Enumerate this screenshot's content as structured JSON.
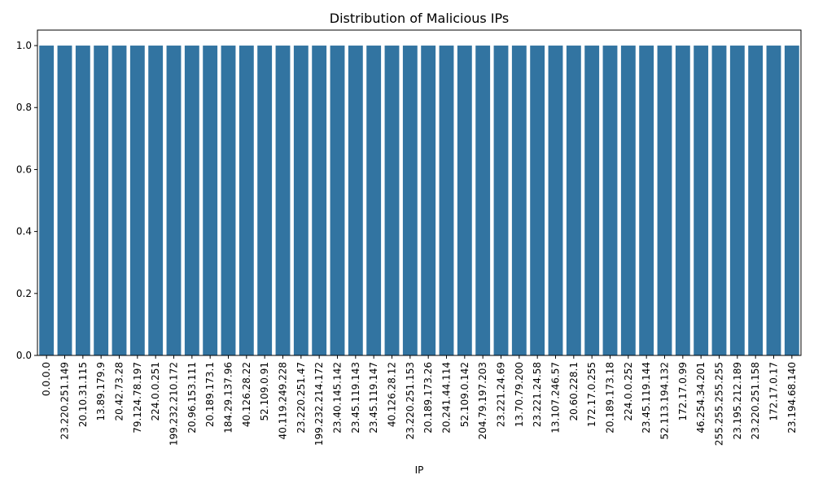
{
  "chart_data": {
    "type": "bar",
    "title": "Distribution of Malicious IPs",
    "xlabel": "IP",
    "ylabel": "",
    "ylim": [
      0,
      1.05
    ],
    "yticks": [
      0.0,
      0.2,
      0.4,
      0.6,
      0.8,
      1.0
    ],
    "ytick_labels": [
      "0.0",
      "0.2",
      "0.4",
      "0.6",
      "0.8",
      "1.0"
    ],
    "grid": false,
    "bar_color": "#3274a1",
    "categories": [
      "0.0.0.0",
      "23.220.251.149",
      "20.10.31.115",
      "13.89.179.9",
      "20.42.73.28",
      "79.124.78.197",
      "224.0.0.251",
      "199.232.210.172",
      "20.96.153.111",
      "20.189.173.1",
      "184.29.137.96",
      "40.126.28.22",
      "52.109.0.91",
      "40.119.249.228",
      "23.220.251.47",
      "199.232.214.172",
      "23.40.145.142",
      "23.45.119.143",
      "23.45.119.147",
      "40.126.28.12",
      "23.220.251.153",
      "20.189.173.26",
      "20.241.44.114",
      "52.109.0.142",
      "204.79.197.203",
      "23.221.24.69",
      "13.70.79.200",
      "23.221.24.58",
      "13.107.246.57",
      "20.60.228.1",
      "172.17.0.255",
      "20.189.173.18",
      "224.0.0.252",
      "23.45.119.144",
      "52.113.194.132",
      "172.17.0.99",
      "46.254.34.201",
      "255.255.255.255",
      "23.195.212.189",
      "23.220.251.158",
      "172.17.0.17",
      "23.194.68.140"
    ],
    "values": [
      1,
      1,
      1,
      1,
      1,
      1,
      1,
      1,
      1,
      1,
      1,
      1,
      1,
      1,
      1,
      1,
      1,
      1,
      1,
      1,
      1,
      1,
      1,
      1,
      1,
      1,
      1,
      1,
      1,
      1,
      1,
      1,
      1,
      1,
      1,
      1,
      1,
      1,
      1,
      1,
      1,
      1
    ]
  }
}
